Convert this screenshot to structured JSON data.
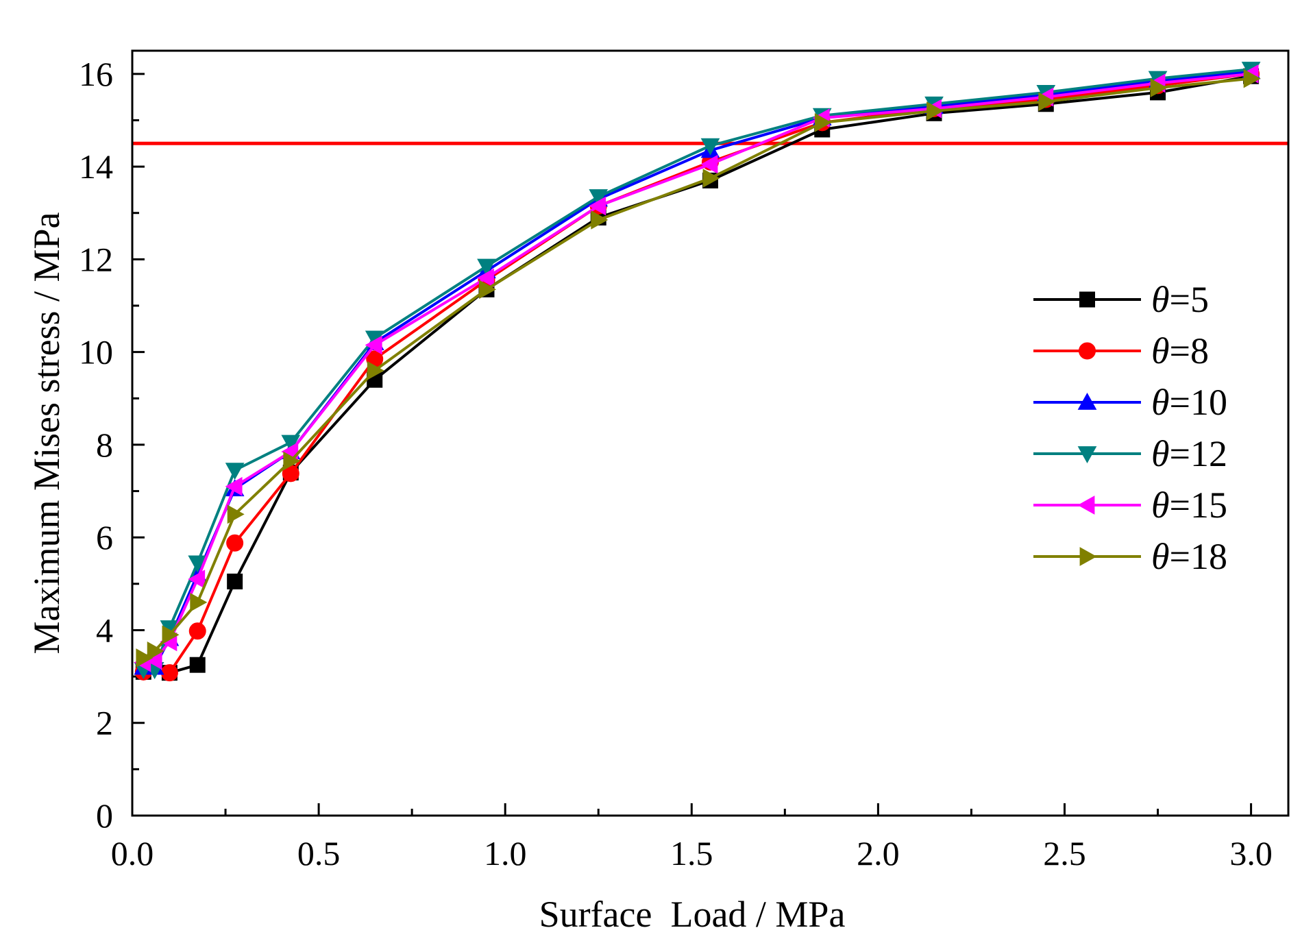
{
  "chart_data": {
    "type": "line",
    "title": "",
    "xlabel": "Surface  Load / MPa",
    "ylabel": "Maximum Mises stress / MPa",
    "xlim": [
      0,
      3.1
    ],
    "ylim": [
      0,
      16.5
    ],
    "xticks": [
      0.0,
      0.5,
      1.0,
      1.5,
      2.0,
      2.5,
      3.0
    ],
    "xtick_labels": [
      "0.0",
      "0.5",
      "1.0",
      "1.5",
      "2.0",
      "2.5",
      "3.0"
    ],
    "yticks": [
      0,
      2,
      4,
      6,
      8,
      10,
      12,
      14,
      16
    ],
    "ytick_labels": [
      "0",
      "2",
      "4",
      "6",
      "8",
      "10",
      "12",
      "14",
      "16"
    ],
    "grid": false,
    "legend_position": "right-middle",
    "reference_line": {
      "y": 14.5,
      "color": "#ff0000"
    },
    "series": [
      {
        "name": "θ=5",
        "theta_symbol": "θ",
        "theta_value": "=5",
        "color": "#000000",
        "marker": "square",
        "x": [
          0.03,
          0.1,
          0.175,
          0.275,
          0.425,
          0.65,
          0.95,
          1.25,
          1.55,
          1.85,
          2.15,
          2.45,
          2.75,
          3.0
        ],
        "y": [
          3.1,
          3.08,
          3.25,
          5.05,
          7.4,
          9.4,
          11.35,
          12.9,
          13.7,
          14.8,
          15.15,
          15.35,
          15.6,
          15.95
        ]
      },
      {
        "name": "θ=8",
        "theta_symbol": "θ",
        "theta_value": "=8",
        "color": "#ff0000",
        "marker": "circle",
        "x": [
          0.03,
          0.1,
          0.175,
          0.275,
          0.425,
          0.65,
          0.95,
          1.25,
          1.55,
          1.85,
          2.15,
          2.45,
          2.75,
          3.0
        ],
        "y": [
          3.1,
          3.08,
          3.98,
          5.88,
          7.38,
          9.85,
          11.55,
          13.15,
          14.1,
          14.95,
          15.25,
          15.45,
          15.75,
          16.0
        ]
      },
      {
        "name": "θ=10",
        "theta_symbol": "θ",
        "theta_value": "=10",
        "color": "#0000ff",
        "marker": "triangle-up",
        "x": [
          0.03,
          0.06,
          0.1,
          0.175,
          0.275,
          0.425,
          0.65,
          0.95,
          1.25,
          1.55,
          1.85,
          2.15,
          2.45,
          2.75,
          3.0
        ],
        "y": [
          3.2,
          3.2,
          3.82,
          5.2,
          7.05,
          7.85,
          10.2,
          11.75,
          13.3,
          14.35,
          15.05,
          15.3,
          15.55,
          15.85,
          16.05
        ]
      },
      {
        "name": "θ=12",
        "theta_symbol": "θ",
        "theta_value": "=12",
        "color": "#008080",
        "marker": "triangle-down",
        "x": [
          0.03,
          0.06,
          0.1,
          0.175,
          0.275,
          0.425,
          0.65,
          0.95,
          1.25,
          1.55,
          1.85,
          2.15,
          2.45,
          2.75,
          3.0
        ],
        "y": [
          3.15,
          3.15,
          4.05,
          5.45,
          7.45,
          8.05,
          10.3,
          11.85,
          13.35,
          14.45,
          15.1,
          15.35,
          15.6,
          15.9,
          16.1
        ]
      },
      {
        "name": "θ=15",
        "theta_symbol": "θ",
        "theta_value": "=15",
        "color": "#ff00ff",
        "marker": "triangle-left",
        "x": [
          0.03,
          0.06,
          0.1,
          0.175,
          0.275,
          0.425,
          0.65,
          0.95,
          1.25,
          1.55,
          1.85,
          2.15,
          2.45,
          2.75,
          3.0
        ],
        "y": [
          3.3,
          3.35,
          3.75,
          5.1,
          7.1,
          7.85,
          10.15,
          11.6,
          13.15,
          14.05,
          15.05,
          15.25,
          15.5,
          15.8,
          16.0
        ]
      },
      {
        "name": "θ=18",
        "theta_symbol": "θ",
        "theta_value": "=18",
        "color": "#808000",
        "marker": "triangle-right",
        "x": [
          0.03,
          0.06,
          0.1,
          0.175,
          0.275,
          0.425,
          0.65,
          0.95,
          1.25,
          1.55,
          1.85,
          2.15,
          2.45,
          2.75,
          3.0
        ],
        "y": [
          3.4,
          3.55,
          3.9,
          4.6,
          6.5,
          7.65,
          9.6,
          11.35,
          12.85,
          13.75,
          14.95,
          15.2,
          15.4,
          15.7,
          15.9
        ]
      }
    ]
  }
}
